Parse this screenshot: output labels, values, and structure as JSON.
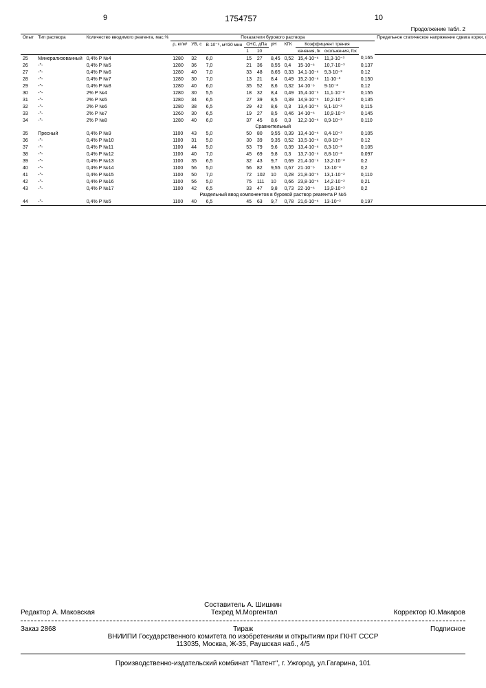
{
  "pageLeft": "9",
  "patentNum": "1754757",
  "pageRight": "10",
  "contLabel": "Продолжение табл. 2",
  "headers": {
    "opyt": "Опыт",
    "tipRastvora": "Тип раствора",
    "kolichestvo": "Количество вводимого реагента, мас.%",
    "pokazateli": "Показатели бурового раствора",
    "rho": "ρ, кг/м³",
    "uv": "УВ, с",
    "v": "В·10⁻⁶, м³/30 мин",
    "sns": "СНС, дПа",
    "sns1": "1",
    "sns10": "10",
    "ph": "рН",
    "kgk": "КГК",
    "koef": "Коэффициент трения",
    "kach": "качения, fк",
    "skol": "скольжения, fск",
    "predel": "Предельное статическое напряжение сдвига корки, глин.корки, G' КПа"
  },
  "rows": [
    {
      "n": "25",
      "tip": "Минерализованный",
      "kol": "0,4% Р №4",
      "rho": "1280",
      "uv": "32",
      "v": "6,0",
      "s1": "15",
      "s10": "27",
      "ph": "8,45",
      "kgk": "0,52",
      "fk": "15,4·10⁻⁶",
      "fsk": "11,3·10⁻³",
      "g": "0,165"
    },
    {
      "n": "26",
      "tip": "-\"-",
      "kol": "0,4% Р №5",
      "rho": "1280",
      "uv": "36",
      "v": "7,0",
      "s1": "21",
      "s10": "36",
      "ph": "8,55",
      "kgk": "0,4",
      "fk": "15·10⁻⁶",
      "fsk": "10,7·10⁻³",
      "g": "0,137"
    },
    {
      "n": "27",
      "tip": "-\"-",
      "kol": "0,4% Р №6",
      "rho": "1280",
      "uv": "40",
      "v": "7,0",
      "s1": "33",
      "s10": "48",
      "ph": "8,65",
      "kgk": "0,33",
      "fk": "14,1·10⁻⁶",
      "fsk": "9,3·10⁻³",
      "g": "0,12"
    },
    {
      "n": "28",
      "tip": "-\"-",
      "kol": "0,4% Р №7",
      "rho": "1280",
      "uv": "30",
      "v": "7,0",
      "s1": "13",
      "s10": "21",
      "ph": "8,4",
      "kgk": "0,49",
      "fk": "15,2·10⁻⁶",
      "fsk": "11·10⁻³",
      "g": "0,150"
    },
    {
      "n": "29",
      "tip": "-\"-",
      "kol": "0,4% Р №8",
      "rho": "1280",
      "uv": "40",
      "v": "6,0",
      "s1": "35",
      "s10": "52",
      "ph": "8,6",
      "kgk": "0,32",
      "fk": "14·10⁻⁶",
      "fsk": "9·10⁻³",
      "g": "0,12"
    },
    {
      "n": "30",
      "tip": "-\"-",
      "kol": "2% Р №4",
      "rho": "1280",
      "uv": "30",
      "v": "5,5",
      "s1": "18",
      "s10": "32",
      "ph": "8,4",
      "kgk": "0,49",
      "fk": "15,4·10⁻⁶",
      "fsk": "11,1·10⁻³",
      "g": "0,155"
    },
    {
      "n": "31",
      "tip": "-\"-",
      "kol": "2% Р №5",
      "rho": "1280",
      "uv": "34",
      "v": "6,5",
      "s1": "27",
      "s10": "39",
      "ph": "8,5",
      "kgk": "0,39",
      "fk": "14,9·10⁻⁶",
      "fsk": "10,2·10⁻³",
      "g": "0,135"
    },
    {
      "n": "32",
      "tip": "-\"-",
      "kol": "2% Р №6",
      "rho": "1280",
      "uv": "38",
      "v": "6,5",
      "s1": "29",
      "s10": "42",
      "ph": "8,6",
      "kgk": "0,3",
      "fk": "13,4·10⁻⁶",
      "fsk": "9,1·10⁻³",
      "g": "0,115"
    },
    {
      "n": "33",
      "tip": "-\"-",
      "kol": "2% Р №7",
      "rho": "1260",
      "uv": "30",
      "v": "6,5",
      "s1": "19",
      "s10": "27",
      "ph": "8,5",
      "kgk": "0,46",
      "fk": "14·10⁻⁶",
      "fsk": "10,9·10⁻³",
      "g": "0,145"
    },
    {
      "n": "34",
      "tip": "-\"-",
      "kol": "2% Р №8",
      "rho": "1280",
      "uv": "40",
      "v": "6,0",
      "s1": "37",
      "s10": "45",
      "ph": "8,6",
      "kgk": "0,3",
      "fk": "12,2·10⁻⁶",
      "fsk": "8,9·10⁻³",
      "g": "0,110"
    }
  ],
  "sectionSrav": "Сравнительный",
  "rows2": [
    {
      "n": "35",
      "tip": "Пресный",
      "kol": "0,4% Р №9",
      "rho": "1100",
      "uv": "43",
      "v": "5,0",
      "s1": "50",
      "s10": "80",
      "ph": "9,55",
      "kgk": "0,39",
      "fk": "13,4·10⁻⁶",
      "fsk": "8,4·10⁻³",
      "g": "0,105"
    },
    {
      "n": "36",
      "tip": "-\"-",
      "kol": "0,4% Р №10",
      "rho": "1100",
      "uv": "31",
      "v": "5,0",
      "s1": "30",
      "s10": "39",
      "ph": "9,35",
      "kgk": "0,52",
      "fk": "13,5·10⁻⁶",
      "fsk": "8,8·10⁻³",
      "g": "0,12"
    },
    {
      "n": "37",
      "tip": "-\"-",
      "kol": "0,4% Р №11",
      "rho": "1100",
      "uv": "44",
      "v": "5,0",
      "s1": "53",
      "s10": "79",
      "ph": "9,6",
      "kgk": "0,39",
      "fk": "13,4·10⁻⁶",
      "fsk": "8,3·10⁻³",
      "g": "0,105"
    },
    {
      "n": "38",
      "tip": "-\"-",
      "kol": "0,4% Р №12",
      "rho": "1100",
      "uv": "40",
      "v": "7,0",
      "s1": "45",
      "s10": "69",
      "ph": "9,8",
      "kgk": "0,3",
      "fk": "13,7·10⁻⁶",
      "fsk": "8,8·10⁻³",
      "g": "0,097"
    },
    {
      "n": "39",
      "tip": "-\"-",
      "kol": "0,4% Р №13",
      "rho": "1100",
      "uv": "35",
      "v": "6,5",
      "s1": "32",
      "s10": "43",
      "ph": "9,7",
      "kgk": "0,69",
      "fk": "21,4·10⁻⁶",
      "fsk": "13,2·10⁻³",
      "g": "0,2"
    },
    {
      "n": "40",
      "tip": "-\"-",
      "kol": "0,4% Р №14",
      "rho": "1100",
      "uv": "56",
      "v": "5,0",
      "s1": "56",
      "s10": "82",
      "ph": "9,55",
      "kgk": "0,67",
      "fk": "21·10⁻⁶",
      "fsk": "13·10⁻³",
      "g": "0,2"
    },
    {
      "n": "41",
      "tip": "-\"-",
      "kol": "0,4% Р №15",
      "rho": "1100",
      "uv": "50",
      "v": "7,0",
      "s1": "72",
      "s10": "102",
      "ph": "10",
      "kgk": "0,28",
      "fk": "21,8·10⁻⁶",
      "fsk": "13,1·10⁻³",
      "g": "0,110"
    },
    {
      "n": "42",
      "tip": "-\"-",
      "kol": "0,4% Р №16",
      "rho": "1100",
      "uv": "56",
      "v": "5,0",
      "s1": "75",
      "s10": "111",
      "ph": "10",
      "kgk": "0,66",
      "fk": "23,8·10⁻⁶",
      "fsk": "14,2·10⁻³",
      "g": "0,21"
    },
    {
      "n": "43",
      "tip": "-\"-",
      "kol": "0,4% Р №17",
      "rho": "1100",
      "uv": "42",
      "v": "6,5",
      "s1": "33",
      "s10": "47",
      "ph": "9,8",
      "kgk": "0,73",
      "fk": "22·10⁻⁶",
      "fsk": "13,9·10⁻³",
      "g": "0,2"
    }
  ],
  "sectionRazd": "Раздельный ввод компонентов в буровой раствор реагента Р №5",
  "row44": {
    "n": "44",
    "tip": "-\"-",
    "kol": "0,4% Р №5",
    "rho": "1100",
    "uv": "40",
    "v": "6,5",
    "s1": "45",
    "s10": "63",
    "ph": "9,7",
    "kgk": "0,78",
    "fk": "21,6·10⁻⁶",
    "fsk": "13·10⁻³",
    "g": "0,197"
  },
  "footer": {
    "sostavitel": "Составитель А. Шишкин",
    "redaktor": "Редактор А. Маковская",
    "tehred": "Техред М.Моргентал",
    "korrektor": "Корректор Ю.Макаров",
    "zakaz": "Заказ 2868",
    "tirazh": "Тираж",
    "podpisnoe": "Подписное",
    "vniipi": "ВНИИПИ Государственного комитета по изобретениям и открытиям при ГКНТ СССР",
    "address": "113035, Москва, Ж-35, Раушская наб., 4/5",
    "proizv": "Производственно-издательский комбинат \"Патент\", г. Ужгород, ул.Гагарина, 101"
  }
}
